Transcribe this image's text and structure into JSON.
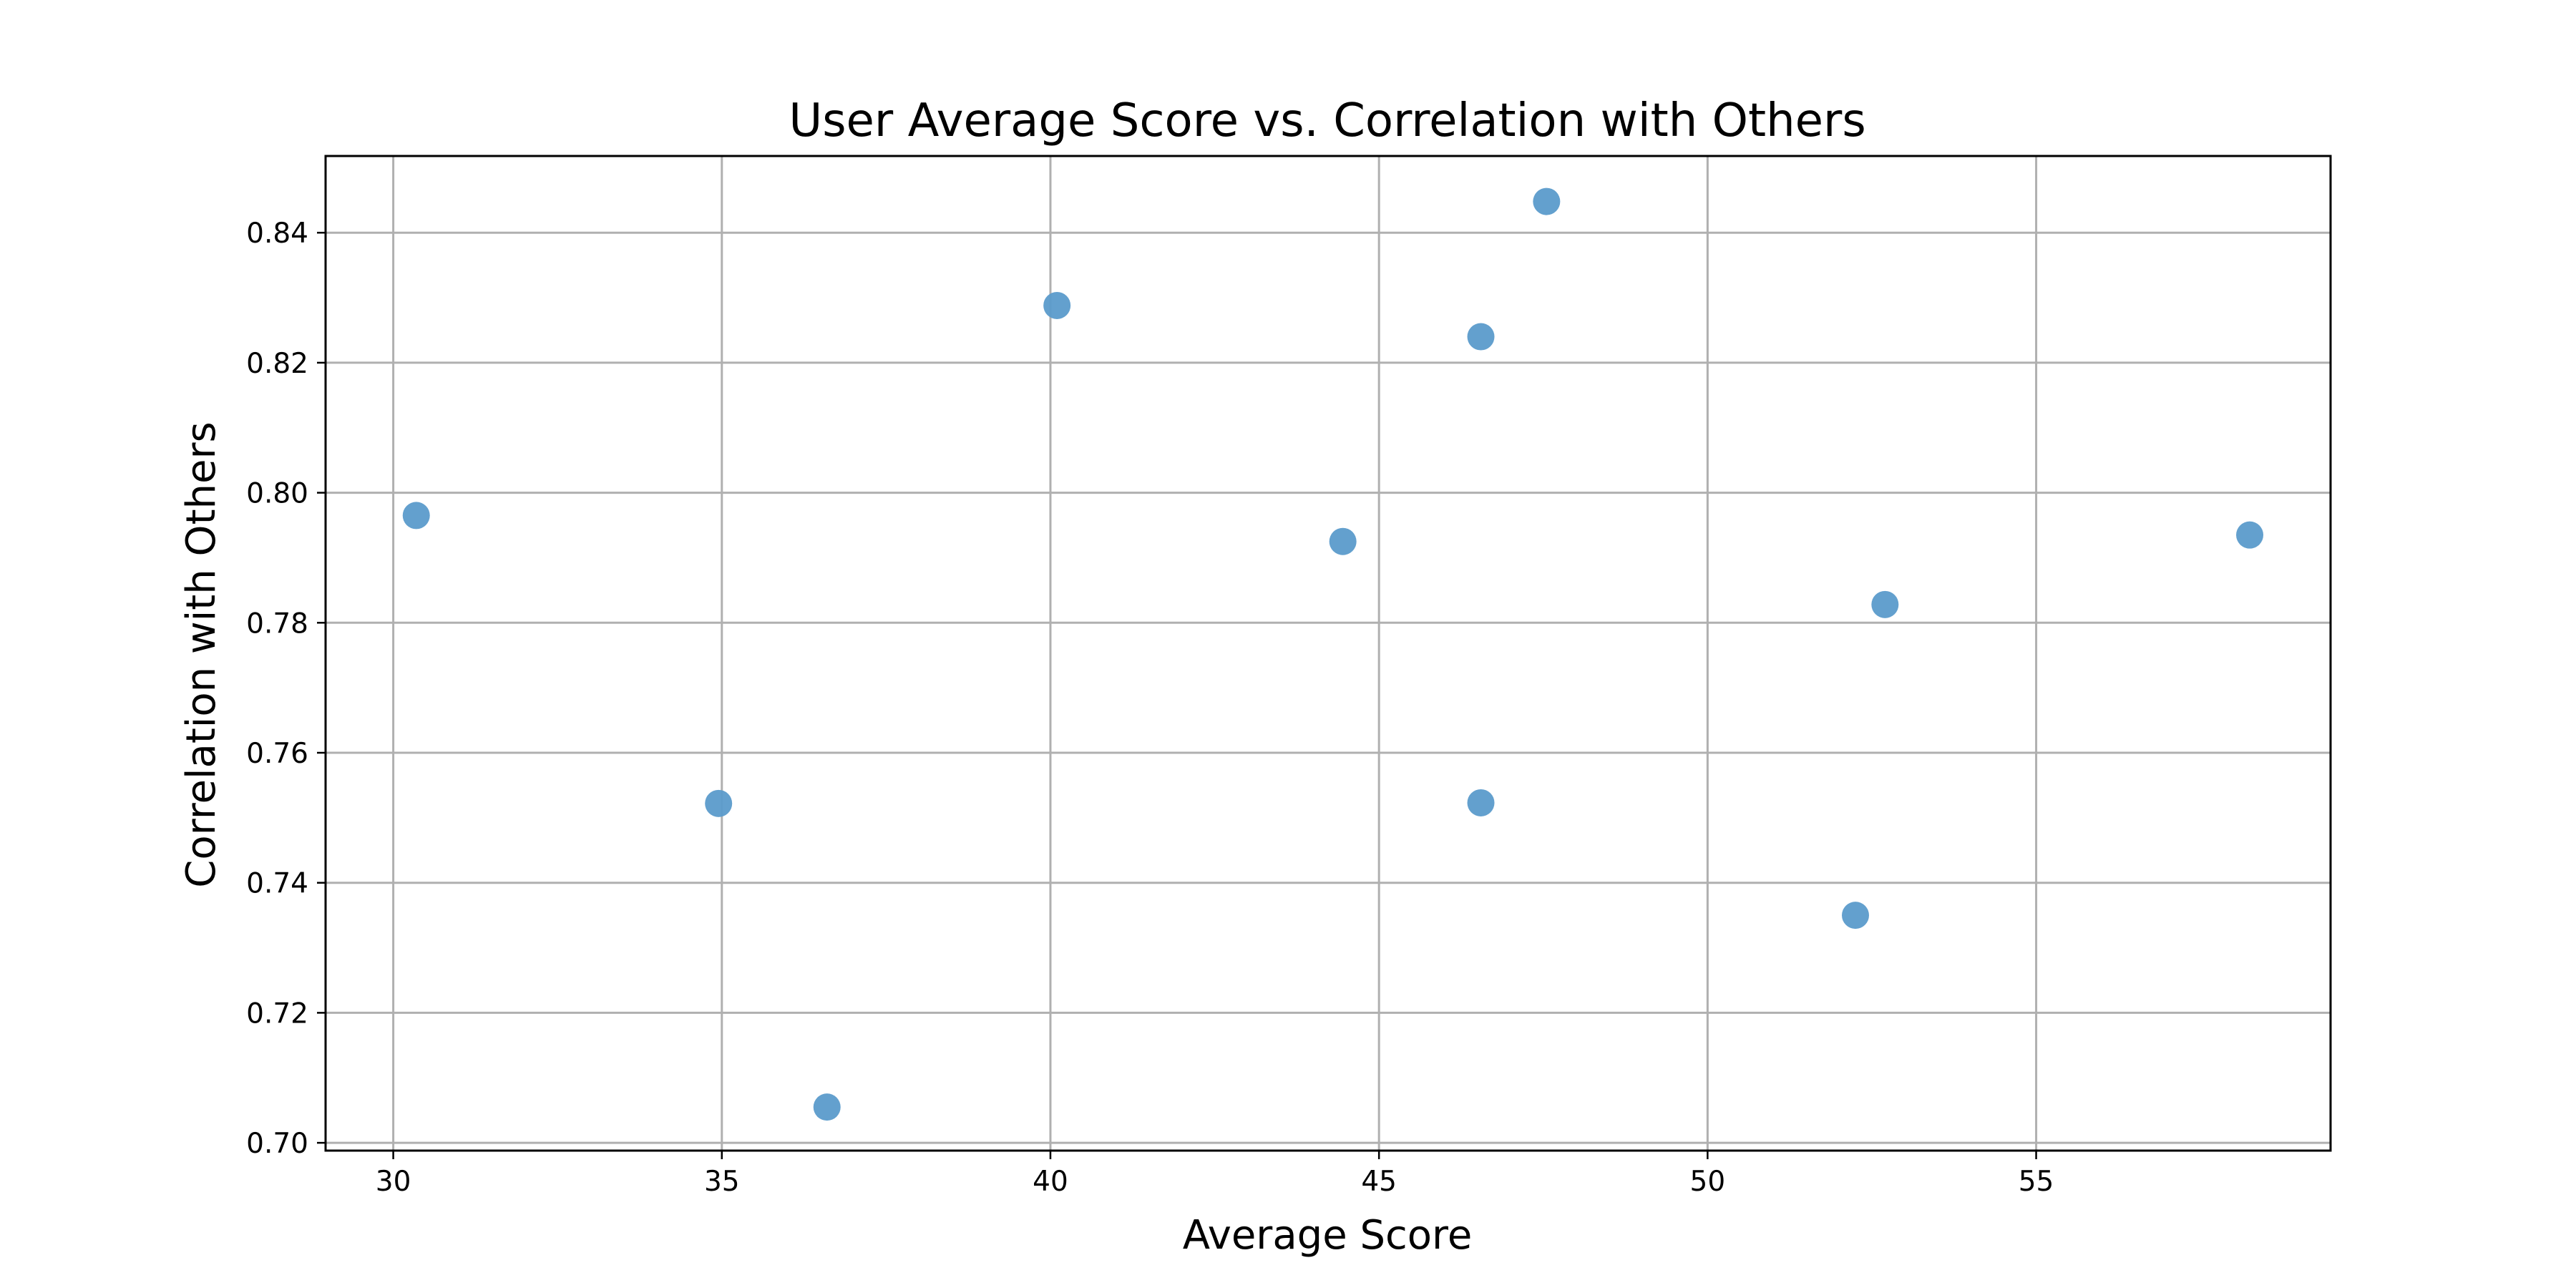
{
  "chart_data": {
    "type": "scatter",
    "title": "User Average Score vs. Correlation with Others",
    "xlabel": "Average Score",
    "ylabel": "Correlation with Others",
    "xlim": [
      28.97,
      59.48
    ],
    "ylim": [
      0.6988,
      0.8518
    ],
    "xticks": [
      30,
      35,
      40,
      45,
      50,
      55
    ],
    "xtick_labels": [
      "30",
      "35",
      "40",
      "45",
      "50",
      "55"
    ],
    "yticks": [
      0.7,
      0.72,
      0.74,
      0.76,
      0.78,
      0.8,
      0.82,
      0.84
    ],
    "ytick_labels": [
      "0.70",
      "0.72",
      "0.74",
      "0.76",
      "0.78",
      "0.80",
      "0.82",
      "0.84"
    ],
    "grid": true,
    "legend": false,
    "marker_color": "#5b9bcb",
    "series": [
      {
        "points": [
          {
            "x": 30.35,
            "y": 0.7965
          },
          {
            "x": 34.95,
            "y": 0.7522
          },
          {
            "x": 36.6,
            "y": 0.7055
          },
          {
            "x": 40.1,
            "y": 0.8288
          },
          {
            "x": 44.45,
            "y": 0.7925
          },
          {
            "x": 46.55,
            "y": 0.824
          },
          {
            "x": 46.55,
            "y": 0.7523
          },
          {
            "x": 47.55,
            "y": 0.8448
          },
          {
            "x": 52.25,
            "y": 0.735
          },
          {
            "x": 52.7,
            "y": 0.7828
          },
          {
            "x": 58.25,
            "y": 0.7935
          }
        ]
      }
    ]
  }
}
